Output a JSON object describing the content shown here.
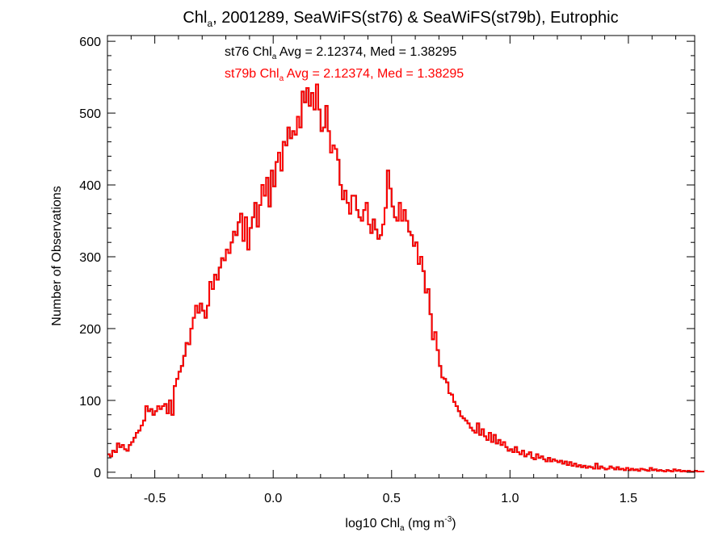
{
  "chart_data": {
    "type": "histogram",
    "title": {
      "pre": "Chl",
      "sub": "a",
      "post": ", 2001289, SeaWiFS(st76) & SeaWiFS(st79b), Eutrophic"
    },
    "xlabel": {
      "pre": "log10 Chl",
      "sub": "a",
      "mid": " (mg m",
      "sup": "-3",
      "post": ")"
    },
    "ylabel": "Number of Observations",
    "xlim": [
      -0.7,
      1.78
    ],
    "ylim": [
      -8,
      608
    ],
    "x_ticks": [
      -0.5,
      0.0,
      0.5,
      1.0,
      1.5
    ],
    "x_tick_labels": [
      "-0.5",
      "0.0",
      "0.5",
      "1.0",
      "1.5"
    ],
    "y_ticks": [
      0,
      100,
      200,
      300,
      400,
      500,
      600
    ],
    "y_tick_labels": [
      "0",
      "100",
      "200",
      "300",
      "400",
      "500",
      "600"
    ],
    "grid": false,
    "bin_start": -0.7,
    "bin_width": 0.01,
    "annotations": [
      {
        "color": "#000000",
        "pre": "st76 Chl",
        "sub": "a",
        "post": " Avg = 2.12374, Med = 1.38295"
      },
      {
        "color": "#ff0000",
        "pre": "st79b Chl",
        "sub": "a",
        "post": " Avg = 2.12374, Med = 1.38295"
      }
    ],
    "series": [
      {
        "name": "st76",
        "color": "#000000",
        "values": [
          25,
          22,
          30,
          28,
          40,
          35,
          38,
          32,
          30,
          38,
          42,
          48,
          55,
          58,
          65,
          72,
          92,
          85,
          88,
          80,
          85,
          92,
          88,
          92,
          95,
          82,
          100,
          80,
          120,
          130,
          140,
          148,
          162,
          180,
          178,
          200,
          215,
          232,
          222,
          235,
          225,
          215,
          232,
          265,
          255,
          275,
          268,
          285,
          298,
          295,
          310,
          305,
          320,
          335,
          330,
          348,
          360,
          322,
          355,
          310,
          340,
          355,
          375,
          342,
          372,
          400,
          385,
          410,
          370,
          420,
          398,
          432,
          445,
          420,
          460,
          455,
          480,
          465,
          475,
          470,
          495,
          480,
          530,
          515,
          535,
          510,
          528,
          505,
          540,
          505,
          475,
          480,
          510,
          475,
          445,
          455,
          450,
          435,
          400,
          380,
          392,
          375,
          360,
          385,
          385,
          365,
          355,
          350,
          365,
          375,
          345,
          333,
          352,
          338,
          325,
          330,
          345,
          368,
          420,
          395,
          370,
          355,
          350,
          375,
          350,
          365,
          350,
          335,
          330,
          315,
          320,
          290,
          300,
          280,
          250,
          255,
          220,
          185,
          195,
          170,
          148,
          132,
          130,
          125,
          110,
          108,
          98,
          92,
          85,
          78,
          75,
          72,
          68,
          62,
          58,
          55,
          68,
          52,
          60,
          50,
          45,
          55,
          42,
          52,
          40,
          45,
          38,
          42,
          35,
          30,
          32,
          28,
          35,
          28,
          25,
          30,
          22,
          25,
          28,
          20,
          18,
          25,
          20,
          22,
          18,
          15,
          20,
          15,
          18,
          16,
          14,
          16,
          12,
          15,
          10,
          14,
          9,
          12,
          8,
          10,
          7,
          9,
          6,
          8,
          7,
          5,
          12,
          5,
          8,
          6,
          4,
          5,
          8,
          6,
          4,
          7,
          4,
          5,
          3,
          6,
          3,
          5,
          3,
          4,
          2,
          5,
          4,
          3,
          2,
          6,
          3,
          4,
          2,
          3,
          2,
          1,
          3,
          2,
          1,
          4,
          2,
          3,
          1,
          2,
          1,
          2,
          1,
          1,
          2,
          1,
          1,
          1
        ]
      },
      {
        "name": "st79b",
        "color": "#ff0000",
        "values": [
          25,
          22,
          30,
          28,
          40,
          35,
          38,
          32,
          30,
          38,
          42,
          48,
          55,
          58,
          65,
          72,
          92,
          85,
          88,
          80,
          85,
          92,
          88,
          92,
          95,
          82,
          100,
          80,
          120,
          130,
          140,
          148,
          162,
          180,
          178,
          200,
          215,
          232,
          222,
          235,
          225,
          215,
          232,
          265,
          255,
          275,
          268,
          285,
          298,
          295,
          310,
          305,
          320,
          335,
          330,
          348,
          360,
          322,
          355,
          310,
          340,
          355,
          375,
          342,
          372,
          400,
          385,
          410,
          370,
          420,
          398,
          432,
          445,
          420,
          460,
          455,
          480,
          465,
          475,
          470,
          495,
          480,
          530,
          515,
          535,
          510,
          528,
          505,
          540,
          505,
          475,
          480,
          510,
          475,
          445,
          455,
          450,
          435,
          400,
          380,
          392,
          375,
          360,
          385,
          385,
          365,
          355,
          350,
          365,
          375,
          345,
          333,
          352,
          338,
          325,
          330,
          345,
          368,
          420,
          395,
          370,
          355,
          350,
          375,
          350,
          365,
          350,
          335,
          330,
          315,
          320,
          290,
          300,
          280,
          250,
          255,
          220,
          185,
          195,
          170,
          148,
          132,
          130,
          125,
          110,
          108,
          98,
          92,
          85,
          78,
          75,
          72,
          68,
          62,
          58,
          55,
          68,
          52,
          60,
          50,
          45,
          55,
          42,
          52,
          40,
          45,
          38,
          42,
          35,
          30,
          32,
          28,
          35,
          28,
          25,
          30,
          22,
          25,
          28,
          20,
          18,
          25,
          20,
          22,
          18,
          15,
          20,
          15,
          18,
          16,
          14,
          16,
          12,
          15,
          10,
          14,
          9,
          12,
          8,
          10,
          7,
          9,
          6,
          8,
          7,
          5,
          12,
          5,
          8,
          6,
          4,
          5,
          8,
          6,
          4,
          7,
          4,
          5,
          3,
          6,
          3,
          5,
          3,
          4,
          2,
          5,
          4,
          3,
          2,
          6,
          3,
          4,
          2,
          3,
          2,
          1,
          3,
          2,
          1,
          4,
          2,
          3,
          1,
          2,
          1,
          2,
          1,
          1,
          2,
          1,
          1,
          1
        ]
      }
    ]
  }
}
